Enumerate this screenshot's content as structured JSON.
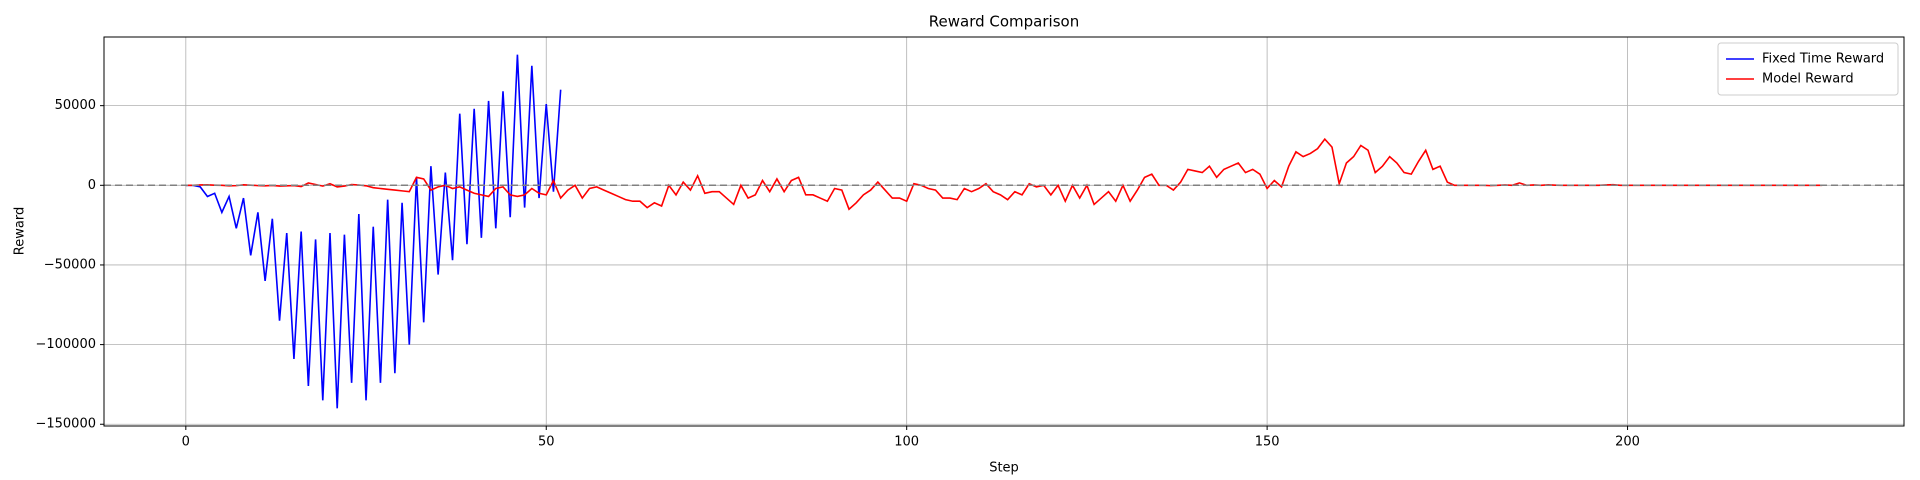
{
  "chart_data": {
    "type": "line",
    "title": "Reward Comparison",
    "x_label": "Step",
    "y_label": "Reward",
    "xlim": [
      -11.35,
      238.35
    ],
    "xticks": [
      0,
      50,
      100,
      150,
      200
    ],
    "ylim": [
      -151100,
      93100
    ],
    "yticks": [
      {
        "value": -150000,
        "label": "−150000"
      },
      {
        "value": -100000,
        "label": "−100000"
      },
      {
        "value": -50000,
        "label": "−50000"
      },
      0,
      50000
    ],
    "grid": true,
    "legend": "upper right",
    "hline": 0,
    "hline_color": "#808080",
    "series": [
      {
        "name": "Fixed Time Reward",
        "color": "#0000ff",
        "x": [
          0,
          1,
          2,
          3,
          4,
          5,
          6,
          7,
          8,
          9,
          10,
          11,
          12,
          13,
          14,
          15,
          16,
          17,
          18,
          19,
          20,
          21,
          22,
          23,
          24,
          25,
          26,
          27,
          28,
          29,
          30,
          31,
          32,
          33,
          34,
          35,
          36,
          37,
          38,
          39,
          40,
          41,
          42,
          43,
          44,
          45,
          46,
          47,
          48,
          49,
          50,
          51,
          52
        ],
        "values": [
          0,
          0,
          -1000,
          -7000,
          -5000,
          -17000,
          -7000,
          -27000,
          -8000,
          -44000,
          -17000,
          -60000,
          -21000,
          -85000,
          -30000,
          -109000,
          -29000,
          -126000,
          -34000,
          -135000,
          -30000,
          -140000,
          -31000,
          -124000,
          -18000,
          -135000,
          -26000,
          -124000,
          -9000,
          -118000,
          -11000,
          -100000,
          5000,
          -86000,
          12000,
          -56000,
          8000,
          -47000,
          45000,
          -37000,
          48000,
          -33000,
          53000,
          -27000,
          59000,
          -20000,
          82000,
          -14000,
          75000,
          -8000,
          51000,
          -4000,
          60000
        ]
      },
      {
        "name": "Model Reward",
        "color": "#ff0000",
        "x": [
          0,
          1,
          2,
          3,
          4,
          5,
          6,
          7,
          8,
          9,
          10,
          11,
          12,
          13,
          14,
          15,
          16,
          17,
          18,
          19,
          20,
          21,
          22,
          23,
          24,
          25,
          26,
          27,
          28,
          29,
          30,
          31,
          32,
          33,
          34,
          35,
          36,
          37,
          38,
          39,
          40,
          41,
          42,
          43,
          44,
          45,
          46,
          47,
          48,
          49,
          50,
          51,
          52,
          53,
          54,
          55,
          56,
          57,
          58,
          59,
          60,
          61,
          62,
          63,
          64,
          65,
          66,
          67,
          68,
          69,
          70,
          71,
          72,
          73,
          74,
          75,
          76,
          77,
          78,
          79,
          80,
          81,
          82,
          83,
          84,
          85,
          86,
          87,
          88,
          89,
          90,
          91,
          92,
          93,
          94,
          95,
          96,
          97,
          98,
          99,
          100,
          101,
          102,
          103,
          104,
          105,
          106,
          107,
          108,
          109,
          110,
          111,
          112,
          113,
          114,
          115,
          116,
          117,
          118,
          119,
          120,
          121,
          122,
          123,
          124,
          125,
          126,
          127,
          128,
          129,
          130,
          131,
          132,
          133,
          134,
          135,
          136,
          137,
          138,
          139,
          140,
          141,
          142,
          143,
          144,
          145,
          146,
          147,
          148,
          149,
          150,
          151,
          152,
          153,
          154,
          155,
          156,
          157,
          158,
          159,
          160,
          161,
          162,
          163,
          164,
          165,
          166,
          167,
          168,
          169,
          170,
          171,
          172,
          173,
          174,
          175,
          176,
          177,
          178,
          179,
          180,
          181,
          182,
          183,
          184,
          185,
          186,
          187,
          188,
          189,
          190,
          191,
          192,
          193,
          194,
          195,
          196,
          197,
          198,
          199,
          200,
          201,
          202,
          203,
          204,
          205,
          206,
          207,
          208,
          209,
          210,
          211,
          212,
          213,
          214,
          215,
          216,
          217,
          218,
          219,
          220,
          221,
          222,
          223,
          224,
          225,
          226,
          227
        ],
        "values": [
          0,
          0,
          200,
          300,
          100,
          0,
          -300,
          -200,
          300,
          100,
          -200,
          -300,
          -100,
          -500,
          -300,
          -200,
          -800,
          1500,
          500,
          -500,
          1000,
          -1000,
          -500,
          500,
          200,
          -300,
          -1500,
          -2000,
          -2500,
          -3000,
          -3500,
          -4000,
          5000,
          4000,
          -3000,
          -1000,
          0,
          -2000,
          -1000,
          -3000,
          -5000,
          -6000,
          -7000,
          -2000,
          -1000,
          -6000,
          -7000,
          -6000,
          -2000,
          -5000,
          -6000,
          3000,
          -8000,
          -3000,
          0,
          -8000,
          -2000,
          -1000,
          -3000,
          -5000,
          -7000,
          -9000,
          -10000,
          -10000,
          -14000,
          -11000,
          -13000,
          0,
          -6000,
          2000,
          -3000,
          6000,
          -5000,
          -4000,
          -4000,
          -8000,
          -12000,
          0,
          -8000,
          -6000,
          3000,
          -4000,
          4000,
          -4000,
          3000,
          5000,
          -6000,
          -6000,
          -8000,
          -10000,
          -2000,
          -3000,
          -15000,
          -11000,
          -6000,
          -3000,
          2000,
          -3000,
          -8000,
          -8000,
          -10000,
          1000,
          0,
          -2000,
          -3000,
          -8000,
          -8000,
          -9000,
          -2000,
          -4000,
          -2000,
          1000,
          -4000,
          -6000,
          -9000,
          -4000,
          -6000,
          1000,
          -1000,
          0,
          -6000,
          0,
          -10000,
          0,
          -8000,
          0,
          -12000,
          -8000,
          -4000,
          -10000,
          0,
          -10000,
          -3000,
          5000,
          7000,
          0,
          0,
          -3000,
          2000,
          10000,
          9000,
          8000,
          12000,
          5000,
          10000,
          12000,
          14000,
          8000,
          10000,
          7000,
          -2000,
          3000,
          -1000,
          12000,
          21000,
          18000,
          20000,
          23000,
          29000,
          24000,
          1000,
          14000,
          18000,
          25000,
          22000,
          8000,
          12000,
          18000,
          14000,
          8000,
          7000,
          15000,
          22000,
          10000,
          12000,
          2000,
          0,
          0,
          0,
          0,
          0,
          -200,
          0,
          200,
          0,
          1500,
          0,
          200,
          0,
          300,
          100,
          0,
          0,
          0,
          0,
          0,
          0,
          200,
          400,
          0,
          0,
          0,
          0,
          0,
          0,
          0,
          0,
          0,
          0,
          0,
          0,
          0,
          0,
          0,
          0,
          0,
          0,
          0,
          0,
          0,
          0,
          0,
          0,
          0,
          0,
          0,
          0,
          0
        ]
      }
    ]
  }
}
